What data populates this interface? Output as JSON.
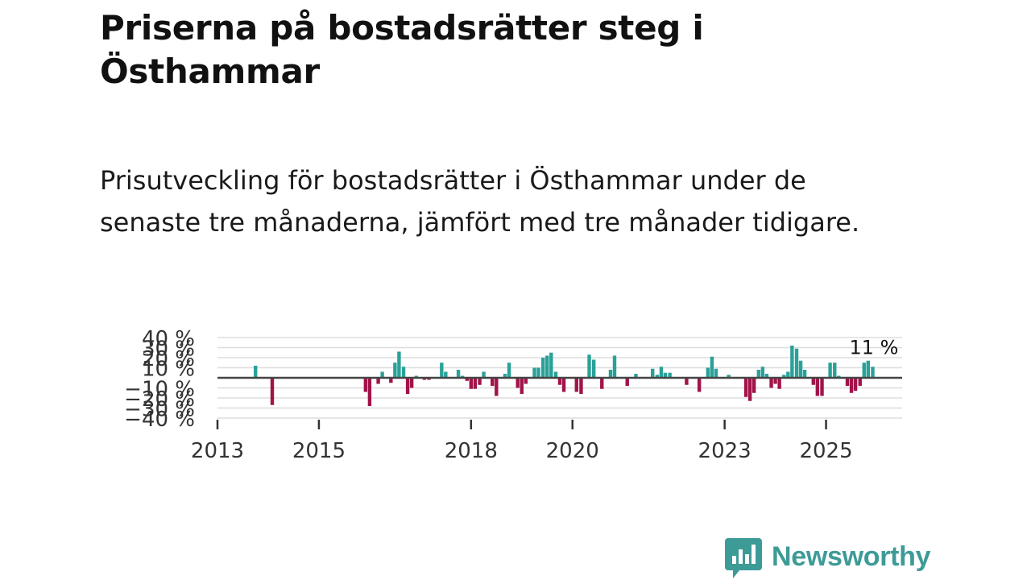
{
  "header": {
    "title": "Priserna på bostadsrätter steg i Östhammar",
    "subtitle": "Prisutveckling för bostadsrätter i Östhammar under de senaste tre månaderna, jämfört med tre månader tidigare."
  },
  "brand": {
    "name": "Newsworthy",
    "color": "#3d9b97"
  },
  "colors": {
    "positive": "#2aa198",
    "negative": "#a1144a",
    "gridline": "#dddddd",
    "zeroline": "#444444",
    "axis": "#333333"
  },
  "chart_data": {
    "type": "bar",
    "title": "",
    "xlabel": "",
    "ylabel": "",
    "ylim": [
      -40,
      40
    ],
    "yticks": [
      40,
      30,
      20,
      10,
      -10,
      -20,
      -30,
      -40
    ],
    "ytick_labels": [
      "40 %",
      "30 %",
      "20 %",
      "10 %",
      "−10 %",
      "−20 %",
      "−30 %",
      "−40 %"
    ],
    "xlim": [
      2013,
      2026.5
    ],
    "xticks": [
      2013,
      2015,
      2018,
      2020,
      2023,
      2025
    ],
    "xtick_labels": [
      "2013",
      "2015",
      "2018",
      "2020",
      "2023",
      "2025"
    ],
    "last_value_label": "11 %",
    "series": [
      {
        "name": "Prisutveckling (%)",
        "points": [
          {
            "x": 2013.75,
            "y": 12
          },
          {
            "x": 2014.08,
            "y": -27
          },
          {
            "x": 2015.92,
            "y": -14
          },
          {
            "x": 2016.0,
            "y": -28
          },
          {
            "x": 2016.17,
            "y": -6
          },
          {
            "x": 2016.25,
            "y": 6
          },
          {
            "x": 2016.42,
            "y": -5
          },
          {
            "x": 2016.5,
            "y": 15
          },
          {
            "x": 2016.58,
            "y": 26
          },
          {
            "x": 2016.67,
            "y": 11
          },
          {
            "x": 2016.75,
            "y": -16
          },
          {
            "x": 2016.83,
            "y": -10
          },
          {
            "x": 2016.92,
            "y": 2
          },
          {
            "x": 2017.08,
            "y": -2
          },
          {
            "x": 2017.17,
            "y": -2
          },
          {
            "x": 2017.42,
            "y": 15
          },
          {
            "x": 2017.5,
            "y": 6
          },
          {
            "x": 2017.75,
            "y": 8
          },
          {
            "x": 2017.83,
            "y": 2
          },
          {
            "x": 2017.92,
            "y": -3
          },
          {
            "x": 2018.0,
            "y": -11
          },
          {
            "x": 2018.08,
            "y": -11
          },
          {
            "x": 2018.17,
            "y": -7
          },
          {
            "x": 2018.25,
            "y": 6
          },
          {
            "x": 2018.42,
            "y": -8
          },
          {
            "x": 2018.5,
            "y": -18
          },
          {
            "x": 2018.67,
            "y": 4
          },
          {
            "x": 2018.75,
            "y": 15
          },
          {
            "x": 2018.92,
            "y": -10
          },
          {
            "x": 2019.0,
            "y": -16
          },
          {
            "x": 2019.08,
            "y": -6
          },
          {
            "x": 2019.25,
            "y": 10
          },
          {
            "x": 2019.33,
            "y": 10
          },
          {
            "x": 2019.42,
            "y": 20
          },
          {
            "x": 2019.5,
            "y": 22
          },
          {
            "x": 2019.58,
            "y": 25
          },
          {
            "x": 2019.67,
            "y": 6
          },
          {
            "x": 2019.75,
            "y": -7
          },
          {
            "x": 2019.83,
            "y": -14
          },
          {
            "x": 2020.08,
            "y": -14
          },
          {
            "x": 2020.17,
            "y": -16
          },
          {
            "x": 2020.33,
            "y": 23
          },
          {
            "x": 2020.42,
            "y": 18
          },
          {
            "x": 2020.58,
            "y": -11
          },
          {
            "x": 2020.75,
            "y": 8
          },
          {
            "x": 2020.83,
            "y": 22
          },
          {
            "x": 2021.08,
            "y": -8
          },
          {
            "x": 2021.25,
            "y": 4
          },
          {
            "x": 2021.58,
            "y": 9
          },
          {
            "x": 2021.67,
            "y": 3
          },
          {
            "x": 2021.75,
            "y": 11
          },
          {
            "x": 2021.83,
            "y": 5
          },
          {
            "x": 2021.92,
            "y": 5
          },
          {
            "x": 2022.25,
            "y": -7
          },
          {
            "x": 2022.5,
            "y": -14
          },
          {
            "x": 2022.67,
            "y": 10
          },
          {
            "x": 2022.75,
            "y": 21
          },
          {
            "x": 2022.83,
            "y": 9
          },
          {
            "x": 2023.08,
            "y": 3
          },
          {
            "x": 2023.42,
            "y": -19
          },
          {
            "x": 2023.5,
            "y": -23
          },
          {
            "x": 2023.58,
            "y": -15
          },
          {
            "x": 2023.67,
            "y": 8
          },
          {
            "x": 2023.75,
            "y": 11
          },
          {
            "x": 2023.83,
            "y": 4
          },
          {
            "x": 2023.92,
            "y": -10
          },
          {
            "x": 2024.0,
            "y": -6
          },
          {
            "x": 2024.08,
            "y": -11
          },
          {
            "x": 2024.17,
            "y": 3
          },
          {
            "x": 2024.25,
            "y": 6
          },
          {
            "x": 2024.33,
            "y": 32
          },
          {
            "x": 2024.42,
            "y": 29
          },
          {
            "x": 2024.5,
            "y": 17
          },
          {
            "x": 2024.58,
            "y": 8
          },
          {
            "x": 2024.75,
            "y": -7
          },
          {
            "x": 2024.83,
            "y": -18
          },
          {
            "x": 2024.92,
            "y": -18
          },
          {
            "x": 2025.0,
            "y": 0
          },
          {
            "x": 2025.08,
            "y": 15
          },
          {
            "x": 2025.17,
            "y": 15
          },
          {
            "x": 2025.25,
            "y": 2
          },
          {
            "x": 2025.42,
            "y": -8
          },
          {
            "x": 2025.5,
            "y": -15
          },
          {
            "x": 2025.58,
            "y": -13
          },
          {
            "x": 2025.67,
            "y": -8
          },
          {
            "x": 2025.75,
            "y": 15
          },
          {
            "x": 2025.83,
            "y": 17
          },
          {
            "x": 2025.92,
            "y": 11
          }
        ]
      }
    ]
  }
}
